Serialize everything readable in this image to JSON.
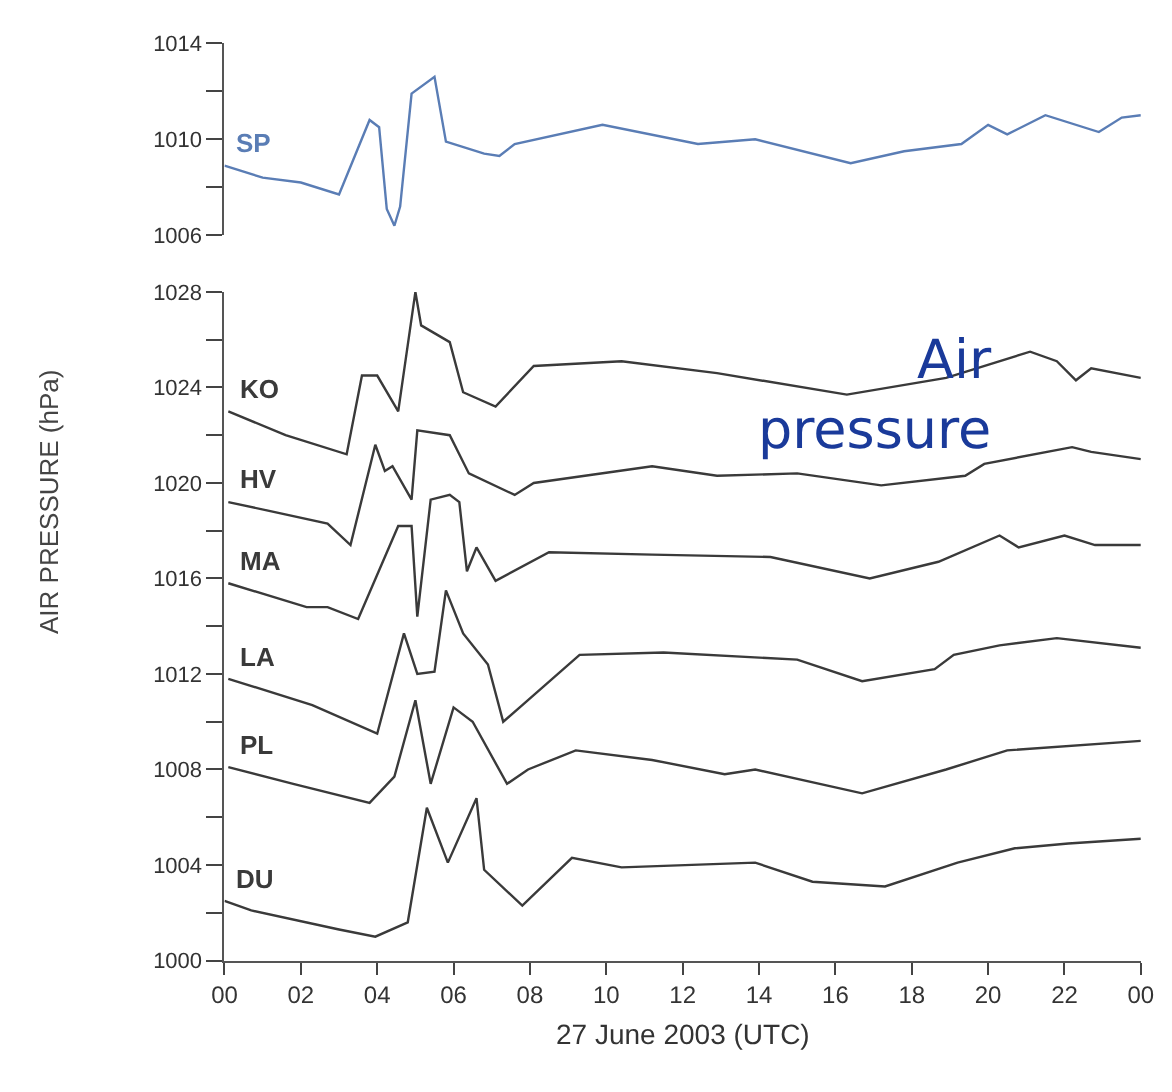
{
  "chart_data": [
    {
      "type": "line",
      "xlim": [
        0,
        24
      ],
      "ylim": [
        1006,
        1014
      ],
      "tick_labels": "y",
      "yticks": [
        1006,
        {
          "value": 1008,
          "label": null
        },
        1010,
        {
          "value": 1012,
          "label": null
        },
        1014
      ],
      "series": [
        {
          "name": "SP",
          "color": "#5a7db5",
          "x": [
            0,
            1,
            2,
            3.0,
            3.8,
            4.05,
            4.25,
            4.45,
            4.6,
            4.9,
            5.5,
            5.8,
            6.8,
            7.2,
            7.6,
            9.9,
            12.4,
            13.9,
            16.4,
            17.8,
            19.3,
            20.0,
            20.5,
            21.5,
            22.9,
            23.5,
            24
          ],
          "values": [
            1008.9,
            1008.4,
            1008.2,
            1007.7,
            1010.8,
            1010.5,
            1007.1,
            1006.4,
            1007.2,
            1011.9,
            1012.6,
            1009.9,
            1009.4,
            1009.3,
            1009.8,
            1010.6,
            1009.8,
            1010.0,
            1009.0,
            1009.5,
            1009.8,
            1010.6,
            1010.2,
            1011.0,
            1010.3,
            1010.9,
            1011.0
          ]
        }
      ]
    },
    {
      "type": "line",
      "xlim": [
        0,
        24
      ],
      "ylim": [
        1000,
        1028
      ],
      "xlabel": "27 June 2003 (UTC)",
      "ylabel": "AIR PRESSURE (hPa)",
      "annotations": [
        "Air pressure"
      ],
      "xticks": [
        {
          "value": 0,
          "label": "00"
        },
        {
          "value": 2,
          "label": "02"
        },
        {
          "value": 4,
          "label": "04"
        },
        {
          "value": 6,
          "label": "06"
        },
        {
          "value": 8,
          "label": "08"
        },
        10,
        12,
        14,
        16,
        18,
        20,
        22,
        {
          "value": 24,
          "label": "00"
        }
      ],
      "yticks": [
        1000,
        {
          "value": 1002,
          "label": null
        },
        1004,
        {
          "value": 1006,
          "label": null
        },
        1008,
        {
          "value": 1010,
          "label": null
        },
        1012,
        {
          "value": 1014,
          "label": null
        },
        1016,
        {
          "value": 1018,
          "label": null
        },
        1020,
        {
          "value": 1022,
          "label": null
        },
        1024,
        {
          "value": 1026,
          "label": null
        },
        1028
      ],
      "series": [
        {
          "name": "KO",
          "color": "#3a3a3a",
          "x": [
            0.1,
            1.6,
            3.2,
            3.6,
            4.0,
            4.55,
            5.0,
            5.15,
            5.9,
            6.25,
            7.1,
            8.1,
            10.4,
            12.9,
            16.3,
            18.9,
            21.1,
            21.8,
            22.3,
            22.7,
            24
          ],
          "values": [
            1023.0,
            1022.0,
            1021.2,
            1024.5,
            1024.5,
            1023.0,
            1028.0,
            1026.6,
            1025.9,
            1023.8,
            1023.2,
            1024.9,
            1025.1,
            1024.6,
            1023.7,
            1024.4,
            1025.5,
            1025.1,
            1024.3,
            1024.8,
            1024.4
          ]
        },
        {
          "name": "HV",
          "color": "#3a3a3a",
          "x": [
            0.1,
            2.7,
            3.3,
            3.95,
            4.2,
            4.4,
            4.9,
            5.05,
            5.9,
            6.4,
            7.6,
            8.1,
            11.2,
            12.9,
            15.0,
            17.2,
            19.4,
            19.9,
            22.2,
            22.7,
            24
          ],
          "values": [
            1019.2,
            1018.3,
            1017.4,
            1021.6,
            1020.5,
            1020.7,
            1019.3,
            1022.2,
            1022.0,
            1020.4,
            1019.5,
            1020.0,
            1020.7,
            1020.3,
            1020.4,
            1019.9,
            1020.3,
            1020.8,
            1021.5,
            1021.3,
            1021.0
          ]
        },
        {
          "name": "MA",
          "color": "#3a3a3a",
          "x": [
            0.1,
            2.15,
            2.7,
            3.5,
            4.55,
            4.9,
            5.05,
            5.4,
            5.9,
            6.15,
            6.35,
            6.6,
            7.1,
            8.5,
            11.2,
            14.3,
            16.9,
            18.7,
            20.3,
            20.8,
            22.0,
            22.8,
            24
          ],
          "values": [
            1015.8,
            1014.8,
            1014.8,
            1014.3,
            1018.2,
            1018.2,
            1014.4,
            1019.3,
            1019.5,
            1019.2,
            1016.3,
            1017.3,
            1015.9,
            1017.1,
            1017.0,
            1016.9,
            1016.0,
            1016.7,
            1017.8,
            1017.3,
            1017.8,
            1017.4,
            1017.4
          ]
        },
        {
          "name": "LA",
          "color": "#3a3a3a",
          "x": [
            0.1,
            2.3,
            4.0,
            4.7,
            5.05,
            5.5,
            5.8,
            6.25,
            6.9,
            7.3,
            7.8,
            9.3,
            11.5,
            15.0,
            16.7,
            18.6,
            19.1,
            20.3,
            21.8,
            24
          ],
          "values": [
            1011.8,
            1010.7,
            1009.5,
            1013.7,
            1012.0,
            1012.1,
            1015.5,
            1013.7,
            1012.4,
            1010.0,
            1010.7,
            1012.8,
            1012.9,
            1012.6,
            1011.7,
            1012.2,
            1012.8,
            1013.2,
            1013.5,
            1013.1
          ]
        },
        {
          "name": "PL",
          "color": "#3a3a3a",
          "x": [
            0.1,
            1.8,
            3.8,
            4.45,
            5.0,
            5.4,
            6.0,
            6.5,
            7.4,
            7.95,
            9.2,
            11.2,
            13.1,
            13.9,
            16.7,
            18.9,
            20.5,
            24
          ],
          "values": [
            1008.1,
            1007.4,
            1006.6,
            1007.7,
            1010.9,
            1007.4,
            1010.6,
            1010.0,
            1007.4,
            1008.0,
            1008.8,
            1008.4,
            1007.8,
            1008.0,
            1007.0,
            1008.0,
            1008.8,
            1009.2
          ]
        },
        {
          "name": "DU",
          "color": "#3a3a3a",
          "x": [
            0,
            0.7,
            3.0,
            3.95,
            4.8,
            5.3,
            5.85,
            6.6,
            6.8,
            7.8,
            9.1,
            10.4,
            13.9,
            15.4,
            17.3,
            19.2,
            20.7,
            22.1,
            24
          ],
          "values": [
            1002.5,
            1002.1,
            1001.3,
            1001.0,
            1001.6,
            1006.4,
            1004.1,
            1006.8,
            1003.8,
            1002.3,
            1004.3,
            1003.9,
            1004.1,
            1003.3,
            1003.1,
            1004.1,
            1004.7,
            1004.9,
            1005.1
          ]
        }
      ]
    }
  ]
}
